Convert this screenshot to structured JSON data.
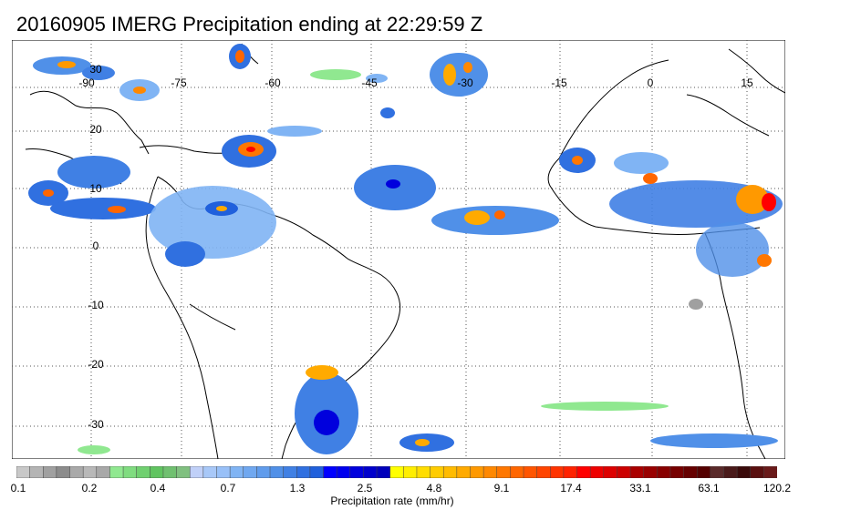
{
  "title": "20160905 IMERG Precipitation ending at 22:29:59 Z",
  "map": {
    "region": "Tropical Atlantic, South America and West Africa",
    "lon_ticks": [
      "-90",
      "-75",
      "-60",
      "-45",
      "-30",
      "-15",
      "0",
      "15"
    ],
    "lat_ticks": [
      "30",
      "20",
      "10",
      "0",
      "-10",
      "-20",
      "-30"
    ],
    "grid": "dotted",
    "coastline_color": "#000000"
  },
  "colorbar": {
    "title": "Precipitation rate (mm/hr)",
    "tick_labels": [
      "0.1",
      "0.2",
      "0.4",
      "0.7",
      "1.3",
      "2.5",
      "4.8",
      "9.1",
      "17.4",
      "33.1",
      "63.1",
      "120.2"
    ],
    "colors": [
      "#c8c8c8",
      "#b4b4b4",
      "#a0a0a0",
      "#8c8c8c",
      "#a9a9a9",
      "#b8b8b8",
      "#a8a8a8",
      "#90e890",
      "#80dc80",
      "#70d070",
      "#60c460",
      "#70c070",
      "#80c080",
      "#c0d0f8",
      "#a8c8f8",
      "#98c0f8",
      "#80b4f4",
      "#70a8f0",
      "#609cec",
      "#5090e8",
      "#4080e4",
      "#3070e0",
      "#2060dc",
      "#0000ff",
      "#0000ee",
      "#0000dd",
      "#0000cc",
      "#0000bb",
      "#ffff00",
      "#ffee00",
      "#ffdd00",
      "#ffcc00",
      "#ffbb00",
      "#ffaa00",
      "#ff9900",
      "#ff8800",
      "#ff7700",
      "#ff6600",
      "#ff5500",
      "#ff4400",
      "#ff3300",
      "#ff2200",
      "#ff0000",
      "#ee0000",
      "#dd0000",
      "#cc0000",
      "#aa0000",
      "#990000",
      "#880000",
      "#770000",
      "#660000",
      "#550000",
      "#5a2a2a",
      "#4a1a1a",
      "#3a0a0a",
      "#5a1010",
      "#6a1a1a"
    ]
  }
}
